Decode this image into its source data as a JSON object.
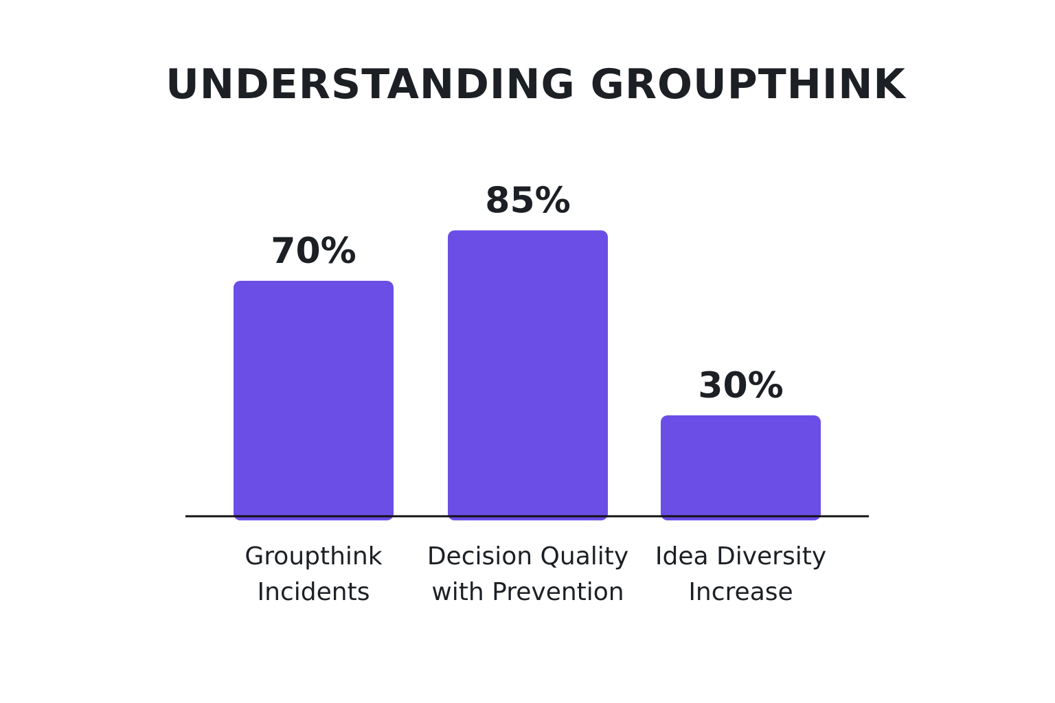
{
  "chart_data": {
    "type": "bar",
    "title": "UNDERSTANDING GROUPTHINK",
    "categories": [
      [
        "Groupthink",
        "Incidents"
      ],
      [
        "Decision Quality",
        "with Prevention"
      ],
      [
        "Idea Diversity",
        "Increase"
      ]
    ],
    "values": [
      70,
      85,
      30
    ],
    "value_labels": [
      "70%",
      "85%",
      "30%"
    ],
    "xlabel": "",
    "ylabel": "",
    "ylim": [
      0,
      100
    ],
    "grid": false,
    "colors": {
      "bar": "#6b4ee6",
      "axis": "#111111",
      "text": "#1c2024"
    }
  }
}
